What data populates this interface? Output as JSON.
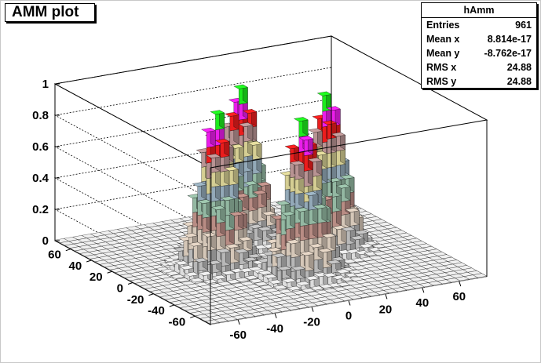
{
  "title": "AMM plot",
  "stats": {
    "name": "hAmm",
    "rows": [
      {
        "label": "Entries",
        "value": "961"
      },
      {
        "label": "Mean x",
        "value": "8.814e-17"
      },
      {
        "label": "Mean y",
        "value": "-8.762e-17"
      },
      {
        "label": "RMS x",
        "value": "24.88"
      },
      {
        "label": "RMS y",
        "value": "24.88"
      }
    ]
  },
  "chart_data": {
    "type": "lego",
    "histogram": "hAmm",
    "title": "AMM plot",
    "x_range": [
      -75,
      75
    ],
    "y_range": [
      -75,
      75
    ],
    "z_range": [
      0,
      1
    ],
    "x_ticks": [
      "-60",
      "-40",
      "-20",
      "0",
      "20",
      "40",
      "60"
    ],
    "y_ticks": [
      "60",
      "40",
      "20",
      "0",
      "-20",
      "-40",
      "-60"
    ],
    "z_ticks": [
      "0",
      "0.2",
      "0.4",
      "0.6",
      "0.8",
      "1"
    ],
    "grid": true,
    "peaks": [
      {
        "x": 30,
        "y": 0,
        "z": 1.0
      },
      {
        "x": -30,
        "y": 0,
        "z": 1.0
      },
      {
        "x": 0,
        "y": 30,
        "z": 1.0
      },
      {
        "x": 0,
        "y": -30,
        "z": 1.0
      }
    ],
    "color_levels": [
      "#f0f0f0",
      "#c8c8c8",
      "#e8d8c8",
      "#c89890",
      "#a0c8b0",
      "#a0b8c8",
      "#e8e0a0",
      "#c8a0a0",
      "#ff2020",
      "#ff20ff",
      "#20ff20"
    ]
  }
}
